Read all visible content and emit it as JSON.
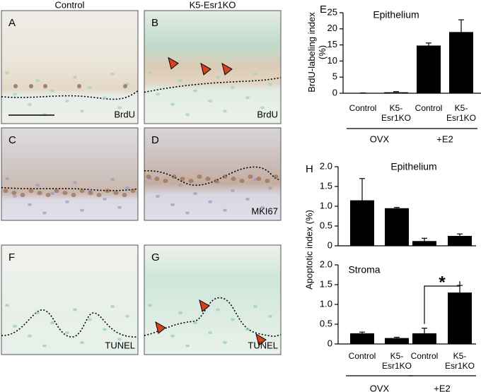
{
  "images": {
    "columns": [
      "Control",
      "K5-Esr1KO"
    ],
    "panels": [
      {
        "letter": "A",
        "stain": "BrdU"
      },
      {
        "letter": "B",
        "stain": "BrdU"
      },
      {
        "letter": "C"
      },
      {
        "letter": "D",
        "stain": "MKI67"
      },
      {
        "letter": "F",
        "stain": "TUNEL"
      },
      {
        "letter": "G",
        "stain": "TUNEL"
      }
    ]
  },
  "chart_data": [
    {
      "type": "bar",
      "panel": "E",
      "title": "Epithelium",
      "ylabel": "BrdU-labeling index (%)",
      "categories": [
        "Control",
        "K5-Esr1KO",
        "Control",
        "K5-Esr1KO"
      ],
      "groups": [
        "OVX",
        "+E2"
      ],
      "values": [
        0.1,
        0.3,
        14.8,
        19.0
      ],
      "errors": [
        0,
        0.2,
        0.8,
        3.8
      ],
      "color": "#000000",
      "ylim": [
        0,
        25
      ],
      "yticks": [
        0,
        5,
        10,
        15,
        20,
        25
      ]
    },
    {
      "type": "bar",
      "panel": "H",
      "title": "Epithelium",
      "ylabel": "Apoptotic index (%)",
      "categories": [
        null,
        null,
        null,
        null
      ],
      "values": [
        1.15,
        0.95,
        0.12,
        0.25
      ],
      "errors": [
        0.55,
        0.02,
        0.07,
        0.05
      ],
      "color": "#000000",
      "ylim": [
        0,
        2
      ],
      "yticks": [
        0,
        0.5,
        {
          "value": 1,
          "label": "1.0"
        },
        1.5,
        {
          "value": 2,
          "label": "2.0"
        }
      ]
    },
    {
      "type": "bar",
      "title": "Stroma",
      "annotation": "*",
      "categories": [
        "Control",
        "K5-Esr1KO",
        "Control",
        "K5-Esr1KO"
      ],
      "groups": [
        "OVX",
        "+E2"
      ],
      "values": [
        0.27,
        0.15,
        0.27,
        1.3
      ],
      "errors": [
        0.03,
        0.02,
        0.13,
        0.18
      ],
      "color": "#000000",
      "ylim": [
        0,
        2
      ],
      "yticks": [
        0,
        0.5,
        {
          "value": 1,
          "label": "1.0"
        },
        1.5,
        {
          "value": 2,
          "label": "2.0"
        }
      ]
    }
  ]
}
